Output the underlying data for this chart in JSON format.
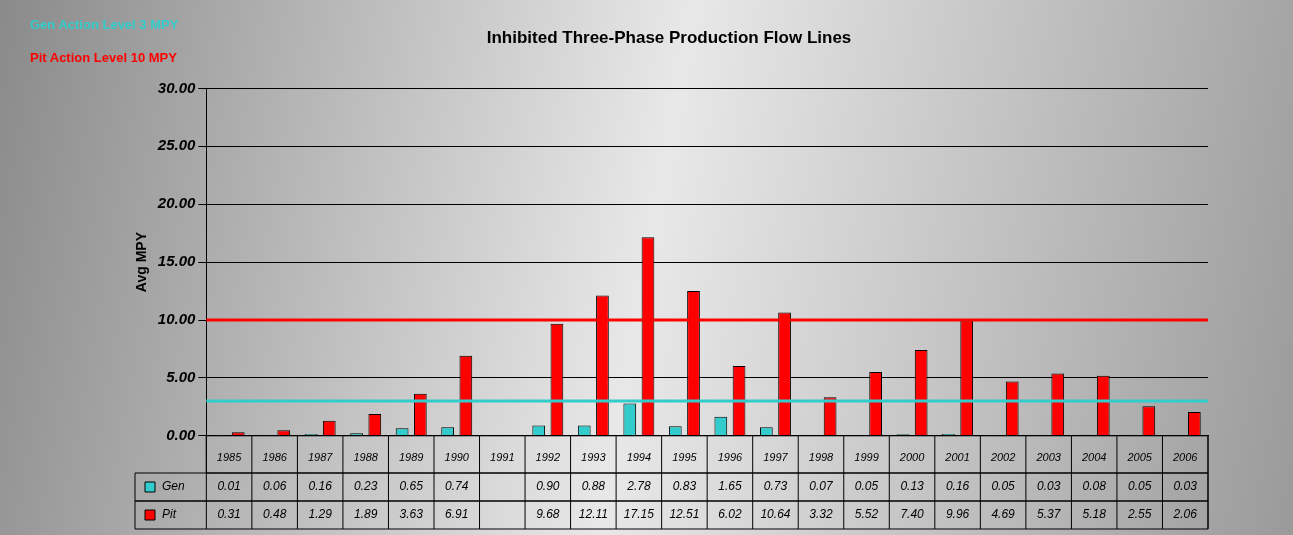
{
  "chart_data": {
    "type": "bar",
    "title": "Inhibited Three-Phase Production Flow Lines",
    "ylabel": "Avg MPY",
    "categories": [
      "1985",
      "1986",
      "1987",
      "1988",
      "1989",
      "1990",
      "1991",
      "1992",
      "1993",
      "1994",
      "1995",
      "1996",
      "1997",
      "1998",
      "1999",
      "2000",
      "2001",
      "2002",
      "2003",
      "2004",
      "2005",
      "2006"
    ],
    "series": [
      {
        "name": "Gen",
        "color": "#33cccc",
        "values": [
          0.01,
          0.06,
          0.16,
          0.23,
          0.65,
          0.74,
          null,
          0.9,
          0.88,
          2.78,
          0.83,
          1.65,
          0.73,
          0.07,
          0.05,
          0.13,
          0.16,
          0.05,
          0.03,
          0.08,
          0.05,
          0.03
        ],
        "value_labels": [
          "0.01",
          "0.06",
          "0.16",
          "0.23",
          "0.65",
          "0.74",
          null,
          "0.90",
          "0.88",
          "2.78",
          "0.83",
          "1.65",
          "0.73",
          "0.07",
          "0.05",
          "0.13",
          "0.16",
          "0.05",
          "0.03",
          "0.08",
          "0.05",
          "0.03"
        ]
      },
      {
        "name": "Pit",
        "color": "#ff0000",
        "values": [
          0.31,
          0.48,
          1.29,
          1.89,
          3.63,
          6.91,
          null,
          9.68,
          12.11,
          17.15,
          12.51,
          6.02,
          10.64,
          3.32,
          5.52,
          7.4,
          9.96,
          4.69,
          5.37,
          5.18,
          2.55,
          2.06
        ],
        "value_labels": [
          "0.31",
          "0.48",
          "1.29",
          "1.89",
          "3.63",
          "6.91",
          null,
          "9.68",
          "12.11",
          "17.15",
          "12.51",
          "6.02",
          "10.64",
          "3.32",
          "5.52",
          "7.40",
          "9.96",
          "4.69",
          "5.37",
          "5.18",
          "2.55",
          "2.06"
        ]
      }
    ],
    "ylim": [
      0,
      30
    ],
    "yticks": [
      {
        "value": 0,
        "label": "0.00"
      },
      {
        "value": 5,
        "label": "5.00"
      },
      {
        "value": 10,
        "label": "10.00"
      },
      {
        "value": 15,
        "label": "15.00"
      },
      {
        "value": 20,
        "label": "20.00"
      },
      {
        "value": 25,
        "label": "25.00"
      },
      {
        "value": 30,
        "label": "30.00"
      }
    ],
    "ref_lines": [
      {
        "axis": "y",
        "value": 3,
        "label": "Gen Action Level 3 MPY",
        "color": "#33cccc"
      },
      {
        "axis": "y",
        "value": 10,
        "label": "Pit Action Level 10 MPY",
        "color": "#ff0000"
      }
    ],
    "grid": "y",
    "legend": "bottom"
  }
}
